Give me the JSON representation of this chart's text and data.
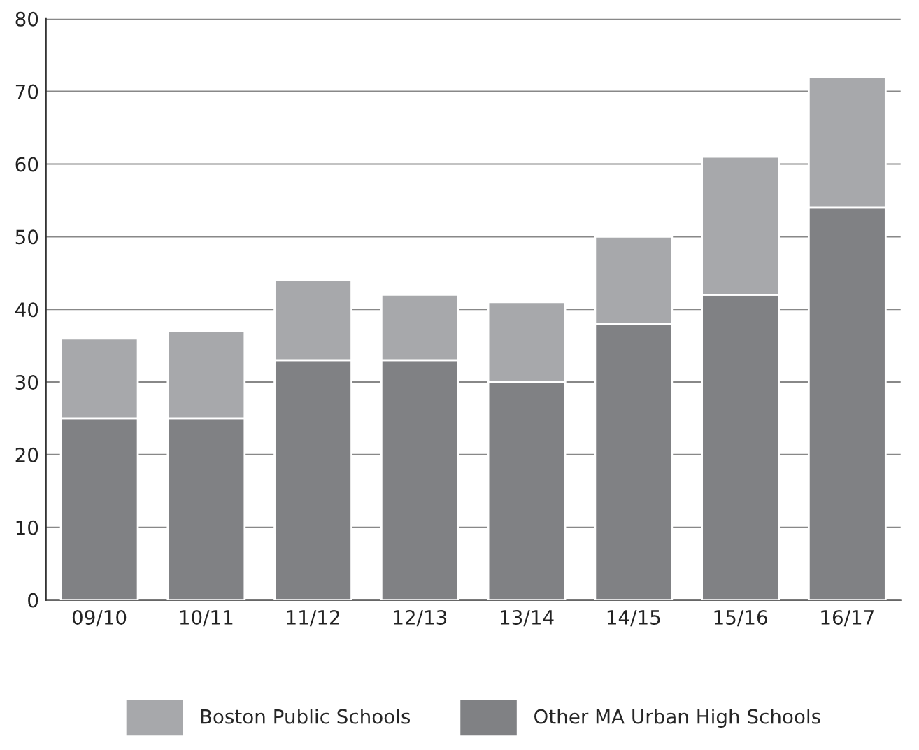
{
  "chart_data": {
    "type": "bar",
    "stacked": true,
    "categories": [
      "09/10",
      "10/11",
      "11/12",
      "12/13",
      "13/14",
      "14/15",
      "15/16",
      "16/17"
    ],
    "series": [
      {
        "name": "Other MA Urban High Schools",
        "color": "#808184",
        "values": [
          25,
          25,
          33,
          33,
          30,
          38,
          42,
          54
        ]
      },
      {
        "name": "Boston Public Schools",
        "color": "#a7a8ab",
        "values": [
          11,
          12,
          11,
          9,
          11,
          12,
          19,
          18
        ]
      }
    ],
    "ylim": [
      0,
      80
    ],
    "yticks": [
      0,
      10,
      20,
      30,
      40,
      50,
      60,
      70,
      80
    ],
    "grid": "y",
    "legend": "bottom"
  }
}
